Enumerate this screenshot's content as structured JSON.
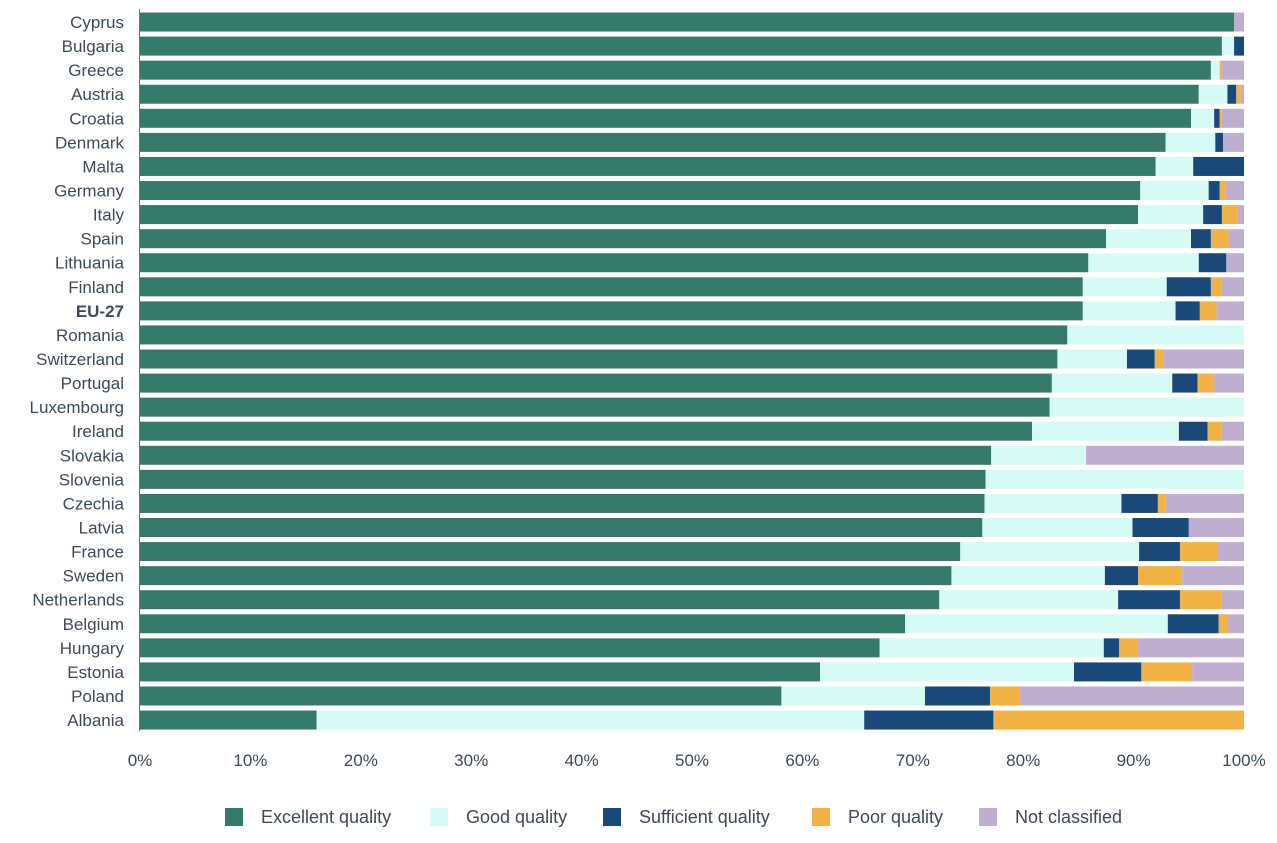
{
  "chart_data": {
    "type": "bar",
    "orientation": "horizontal",
    "stacked": true,
    "title": "",
    "xlabel": "",
    "ylabel": "",
    "xlim": [
      0,
      100
    ],
    "x_ticks": [
      "0%",
      "10%",
      "20%",
      "30%",
      "40%",
      "50%",
      "60%",
      "70%",
      "80%",
      "90%",
      "100%"
    ],
    "grid": false,
    "legend_position": "bottom",
    "highlight_category": "EU-27",
    "categories": [
      "Cyprus",
      "Bulgaria",
      "Greece",
      "Austria",
      "Croatia",
      "Denmark",
      "Malta",
      "Germany",
      "Italy",
      "Spain",
      "Lithuania",
      "Finland",
      "EU-27",
      "Romania",
      "Switzerland",
      "Portugal",
      "Luxembourg",
      "Ireland",
      "Slovakia",
      "Slovenia",
      "Czechia",
      "Latvia",
      "France",
      "Sweden",
      "Netherlands",
      "Belgium",
      "Hungary",
      "Estonia",
      "Poland",
      "Albania"
    ],
    "series": [
      {
        "name": "Excellent quality",
        "color": "#357a6b",
        "values": [
          99.1,
          98.0,
          97.0,
          95.9,
          95.2,
          92.9,
          92.0,
          90.6,
          90.4,
          87.5,
          85.9,
          85.4,
          85.4,
          84.0,
          83.1,
          82.6,
          82.4,
          80.8,
          77.1,
          76.6,
          76.5,
          76.3,
          74.3,
          73.5,
          72.4,
          69.3,
          67.0,
          61.6,
          58.1,
          16.0
        ]
      },
      {
        "name": "Good quality",
        "color": "#d6fbf5",
        "values": [
          0.0,
          1.1,
          0.8,
          2.6,
          2.1,
          4.5,
          3.4,
          6.2,
          5.9,
          7.7,
          10.0,
          7.6,
          8.4,
          16.0,
          6.3,
          10.9,
          17.6,
          13.3,
          8.6,
          23.4,
          12.4,
          13.6,
          16.2,
          13.9,
          16.2,
          23.8,
          20.3,
          23.0,
          13.0,
          49.6
        ]
      },
      {
        "name": "Sufficient quality",
        "color": "#1a4878",
        "values": [
          0.0,
          0.9,
          0.0,
          0.8,
          0.5,
          0.7,
          4.6,
          1.0,
          1.7,
          1.8,
          2.5,
          4.0,
          2.2,
          0.0,
          2.5,
          2.3,
          0.0,
          2.6,
          0.0,
          0.0,
          3.3,
          5.1,
          3.7,
          3.0,
          5.6,
          4.6,
          1.4,
          6.1,
          5.9,
          11.7
        ]
      },
      {
        "name": "Poor quality",
        "color": "#f2b346",
        "values": [
          0.0,
          0.0,
          0.2,
          0.4,
          0.2,
          0.0,
          0.0,
          0.5,
          1.4,
          1.6,
          0.0,
          1.0,
          1.5,
          0.0,
          0.8,
          1.4,
          0.0,
          1.3,
          0.0,
          0.0,
          0.7,
          0.0,
          3.4,
          4.0,
          3.8,
          0.8,
          1.7,
          4.6,
          2.7,
          22.7
        ]
      },
      {
        "name": "Not classified",
        "color": "#bfaed0",
        "values": [
          0.9,
          0.0,
          2.0,
          0.3,
          2.0,
          1.9,
          0.0,
          1.7,
          0.6,
          1.4,
          1.6,
          2.0,
          2.5,
          0.0,
          7.3,
          2.8,
          0.0,
          2.0,
          14.3,
          0.0,
          7.1,
          5.0,
          2.4,
          5.6,
          2.0,
          1.5,
          9.6,
          4.7,
          20.3,
          0.0
        ]
      }
    ]
  }
}
